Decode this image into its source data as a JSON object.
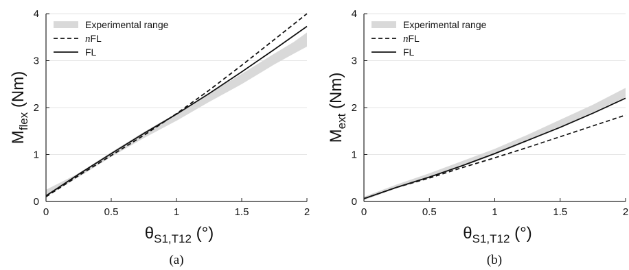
{
  "chart_data": [
    {
      "type": "line",
      "caption": "(a)",
      "ylabel": {
        "main": "M",
        "sub": "flex",
        "unit": " (Nm)"
      },
      "xlabel": {
        "main": "θ",
        "sub": "S1,T12",
        "unit": " (°)"
      },
      "xlim": [
        0,
        2
      ],
      "ylim": [
        0,
        4
      ],
      "xticks": [
        "0",
        "0.5",
        "1",
        "1.5",
        "2"
      ],
      "yticks": [
        "0",
        "1",
        "2",
        "3",
        "4"
      ],
      "grid": "horizontal",
      "legend_position": "top-left",
      "band": {
        "name": "Experimental range",
        "color": "#d9d9d9",
        "x": [
          0,
          0.25,
          0.5,
          0.75,
          1.0,
          1.25,
          1.5,
          1.75,
          1.9,
          2.0
        ],
        "lower": [
          0.1,
          0.52,
          0.95,
          1.35,
          1.72,
          2.12,
          2.5,
          2.92,
          3.15,
          3.3
        ],
        "upper": [
          0.25,
          0.6,
          1.05,
          1.48,
          1.88,
          2.3,
          2.72,
          3.15,
          3.4,
          3.6
        ]
      },
      "series": [
        {
          "name": "nFL",
          "style": "dashed",
          "x": [
            0,
            0.25,
            0.5,
            0.75,
            1.0,
            1.25,
            1.5,
            1.75,
            2.0
          ],
          "y": [
            0.1,
            0.55,
            0.98,
            1.41,
            1.87,
            2.37,
            2.9,
            3.45,
            4.0
          ]
        },
        {
          "name": "FL",
          "style": "solid",
          "x": [
            0,
            0.25,
            0.5,
            0.75,
            1.0,
            1.25,
            1.5,
            1.75,
            2.0
          ],
          "y": [
            0.12,
            0.58,
            1.02,
            1.45,
            1.86,
            2.3,
            2.76,
            3.24,
            3.73
          ]
        }
      ]
    },
    {
      "type": "line",
      "caption": "(b)",
      "ylabel": {
        "main": "M",
        "sub": "ext",
        "unit": " (Nm)"
      },
      "xlabel": {
        "main": "θ",
        "sub": "S1,T12",
        "unit": " (°)"
      },
      "xlim": [
        0,
        2
      ],
      "ylim": [
        0,
        4
      ],
      "xticks": [
        "0",
        "0.5",
        "1",
        "1.5",
        "2"
      ],
      "yticks": [
        "0",
        "1",
        "2",
        "3",
        "4"
      ],
      "grid": "horizontal",
      "legend_position": "top-left",
      "band": {
        "name": "Experimental range",
        "color": "#d9d9d9",
        "x": [
          0,
          0.25,
          0.5,
          0.75,
          1.0,
          1.25,
          1.5,
          1.75,
          2.0
        ],
        "lower": [
          0.03,
          0.28,
          0.5,
          0.74,
          1.0,
          1.28,
          1.58,
          1.9,
          2.22
        ],
        "upper": [
          0.1,
          0.36,
          0.6,
          0.86,
          1.12,
          1.42,
          1.74,
          2.06,
          2.42
        ]
      },
      "series": [
        {
          "name": "nFL",
          "style": "dashed",
          "x": [
            0,
            0.25,
            0.5,
            0.75,
            1.0,
            1.25,
            1.5,
            1.75,
            2.0
          ],
          "y": [
            0.06,
            0.3,
            0.5,
            0.72,
            0.93,
            1.15,
            1.38,
            1.61,
            1.84
          ]
        },
        {
          "name": "FL",
          "style": "solid",
          "x": [
            0,
            0.25,
            0.5,
            0.75,
            1.0,
            1.25,
            1.5,
            1.75,
            2.0
          ],
          "y": [
            0.06,
            0.3,
            0.52,
            0.76,
            1.02,
            1.3,
            1.58,
            1.88,
            2.2
          ]
        }
      ]
    }
  ]
}
